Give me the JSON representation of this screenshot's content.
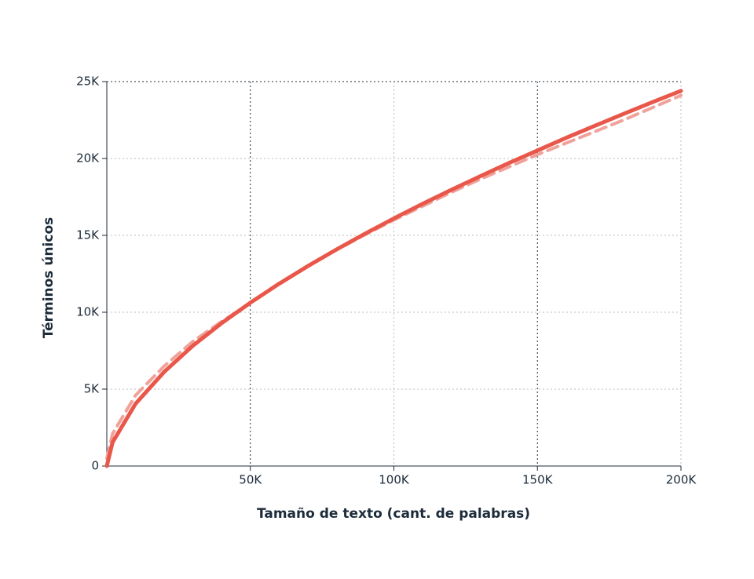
{
  "chart_data": {
    "type": "line",
    "x_label": "Tamaño de texto (cant. de palabras)",
    "y_label": "Términos únicos",
    "x": [
      0,
      2000,
      10000,
      20000,
      30000,
      40000,
      50000,
      60000,
      70000,
      80000,
      90000,
      100000,
      110000,
      120000,
      130000,
      140000,
      150000,
      160000,
      170000,
      180000,
      190000,
      200000
    ],
    "series": [
      {
        "color": "#f0a29a",
        "dashed": true,
        "values": [
          500,
          2100,
          4600,
          6500,
          8100,
          9400,
          10600,
          11900,
          13000,
          14050,
          15050,
          16000,
          16900,
          17800,
          18650,
          19450,
          20250,
          21000,
          21750,
          22500,
          23300,
          24100
        ]
      },
      {
        "color": "#e8574a",
        "dashed": false,
        "values": [
          0,
          1540,
          4050,
          6130,
          7820,
          9290,
          10620,
          11850,
          13000,
          14080,
          15110,
          16100,
          17050,
          17960,
          18840,
          19700,
          20520,
          21340,
          22130,
          22900,
          23660,
          24400
        ]
      }
    ],
    "xlim": [
      0,
      200000
    ],
    "xticks": [
      {
        "value": 50000,
        "label": "50K"
      },
      {
        "value": 100000,
        "label": "100K"
      },
      {
        "value": 150000,
        "label": "150K"
      },
      {
        "value": 200000,
        "label": "200K"
      }
    ],
    "ylim": [
      0,
      25000
    ],
    "yticks": [
      0,
      {
        "value": 5000,
        "label": "5K"
      },
      {
        "value": 10000,
        "label": "10K"
      },
      {
        "value": 15000,
        "label": "15K"
      },
      {
        "value": 20000,
        "label": "20K"
      },
      {
        "value": 25000,
        "label": "25K"
      }
    ],
    "grid": true
  }
}
